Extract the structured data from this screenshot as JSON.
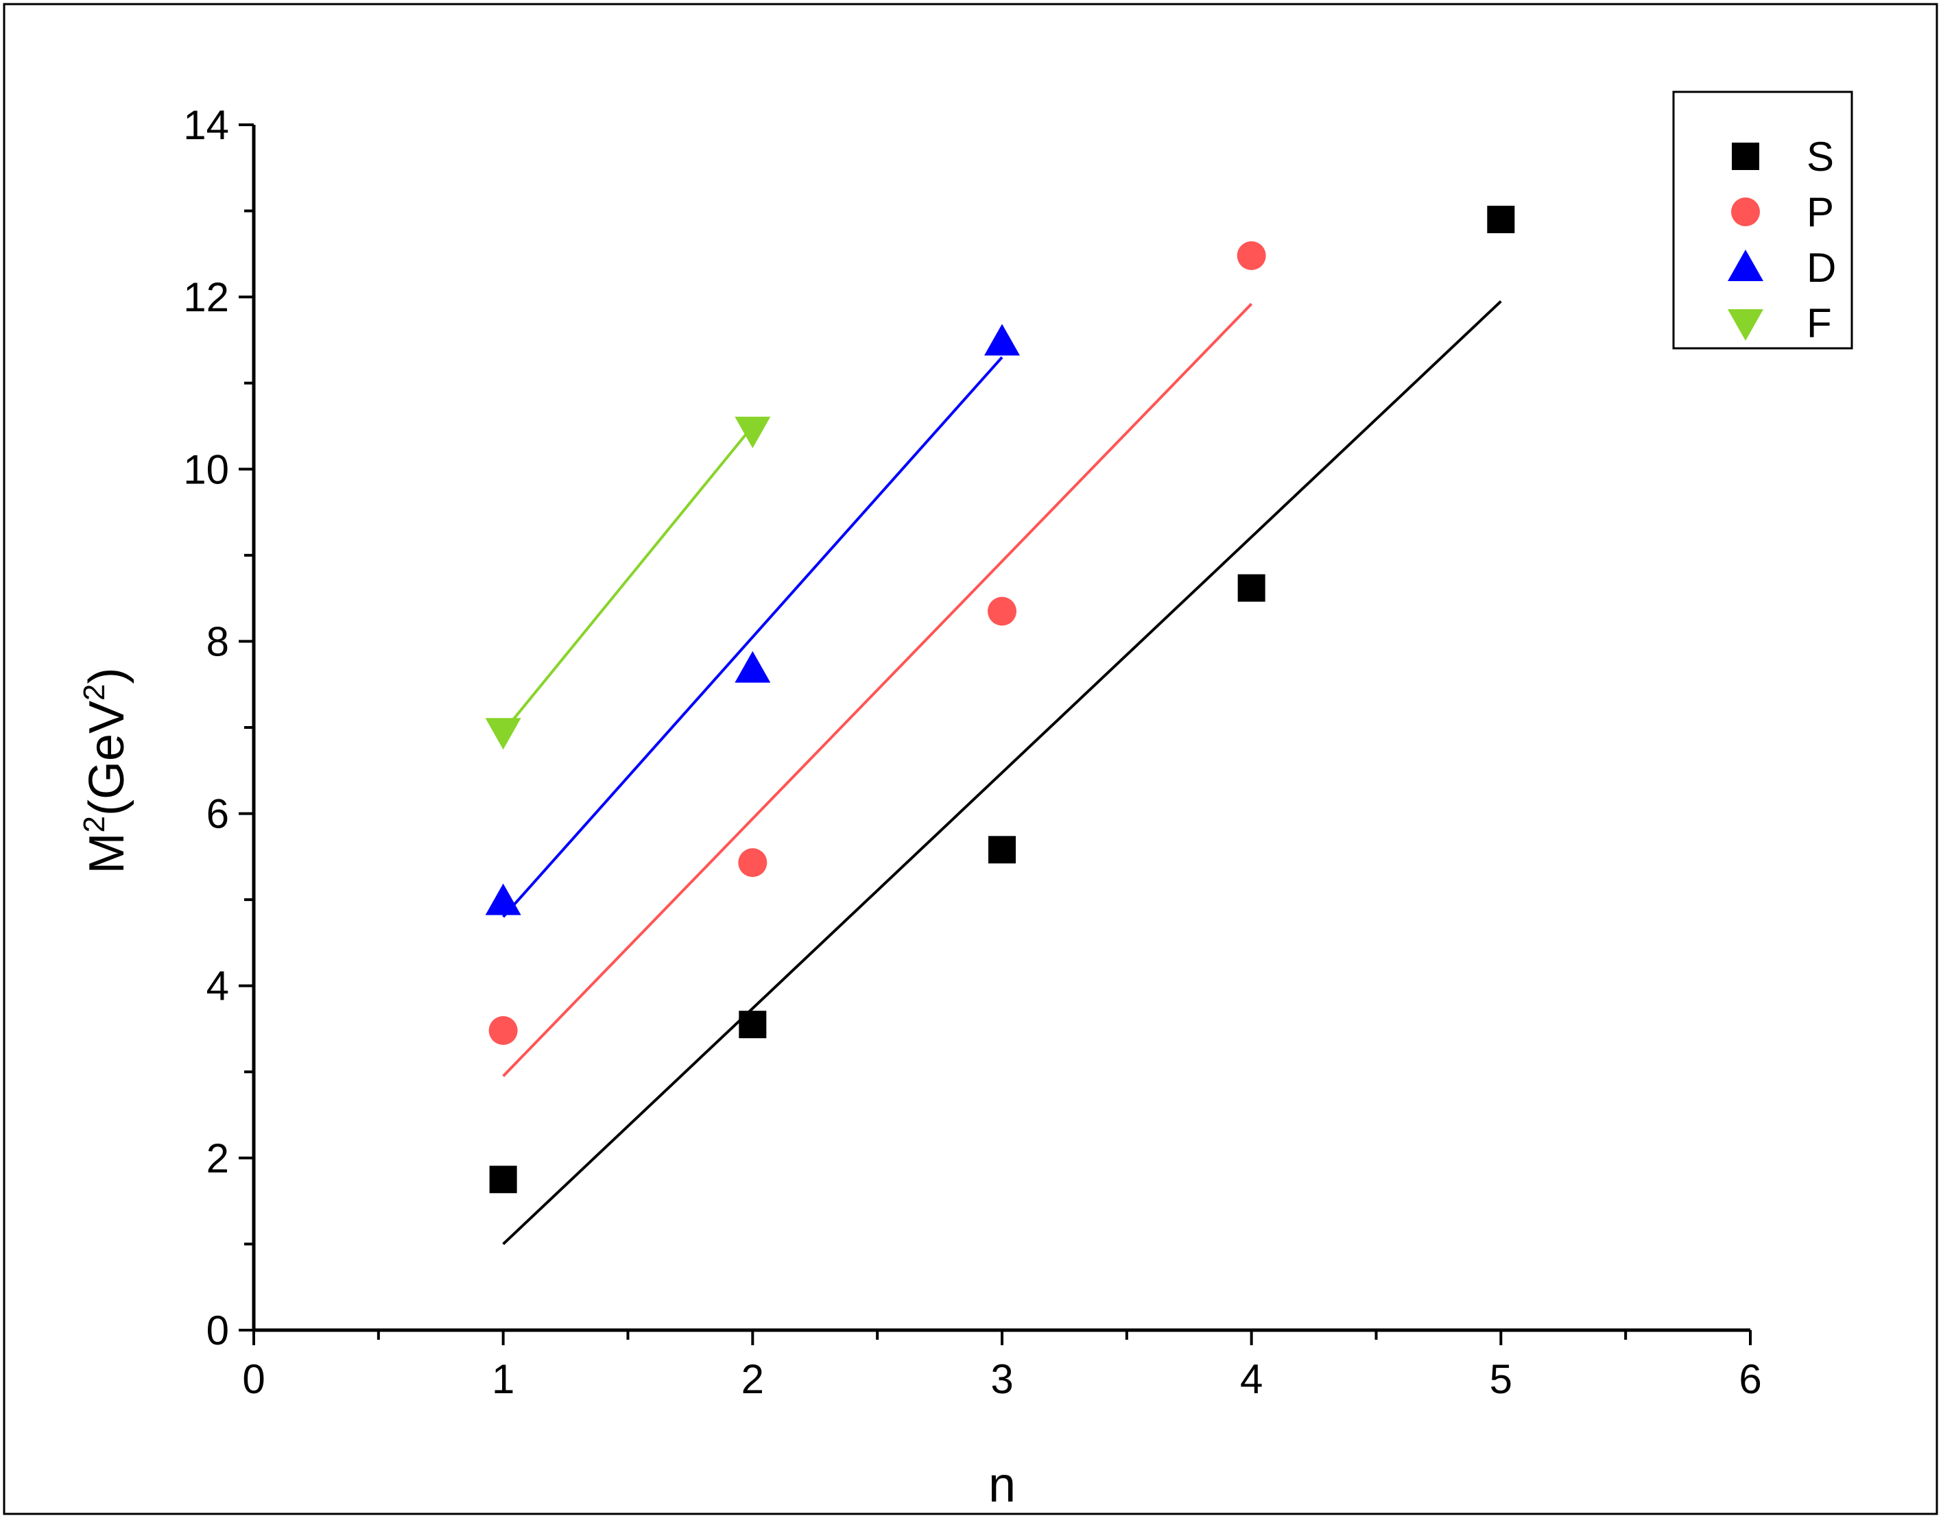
{
  "chart_data": {
    "type": "scatter",
    "xlabel": "n",
    "ylabel": {
      "main": "M",
      "sup1": "2",
      "mid": "(GeV",
      "sup2": "2",
      "end": ")"
    },
    "xlim": [
      0,
      6
    ],
    "ylim": [
      0,
      14
    ],
    "xticks": [
      "0",
      "1",
      "2",
      "3",
      "4",
      "5",
      "6"
    ],
    "yticks": [
      "0",
      "2",
      "4",
      "6",
      "8",
      "10",
      "12",
      "14"
    ],
    "grid": false,
    "legend_position": "top-right",
    "series": [
      {
        "name": "S",
        "color": "#000000",
        "marker": "square",
        "points": [
          [
            1,
            1.75
          ],
          [
            2,
            3.55
          ],
          [
            3,
            5.58
          ],
          [
            4,
            8.62
          ],
          [
            5,
            12.9
          ]
        ],
        "fit": [
          [
            1,
            1.0
          ],
          [
            5,
            11.95
          ]
        ]
      },
      {
        "name": "P",
        "color": "#ff5555",
        "marker": "circle",
        "points": [
          [
            1,
            3.48
          ],
          [
            2,
            5.43
          ],
          [
            3,
            8.35
          ],
          [
            4,
            12.48
          ]
        ],
        "fit": [
          [
            1,
            2.95
          ],
          [
            4,
            11.92
          ]
        ]
      },
      {
        "name": "D",
        "color": "#0000ff",
        "marker": "triangle-up",
        "points": [
          [
            1,
            4.98
          ],
          [
            2,
            7.68
          ],
          [
            3,
            11.48
          ]
        ],
        "fit": [
          [
            1,
            4.8
          ],
          [
            3,
            11.3
          ]
        ]
      },
      {
        "name": "F",
        "color": "#88d42a",
        "marker": "triangle-down",
        "points": [
          [
            1,
            6.95
          ],
          [
            2,
            10.45
          ]
        ],
        "fit": [
          [
            1,
            6.95
          ],
          [
            2,
            10.5
          ]
        ]
      }
    ]
  }
}
